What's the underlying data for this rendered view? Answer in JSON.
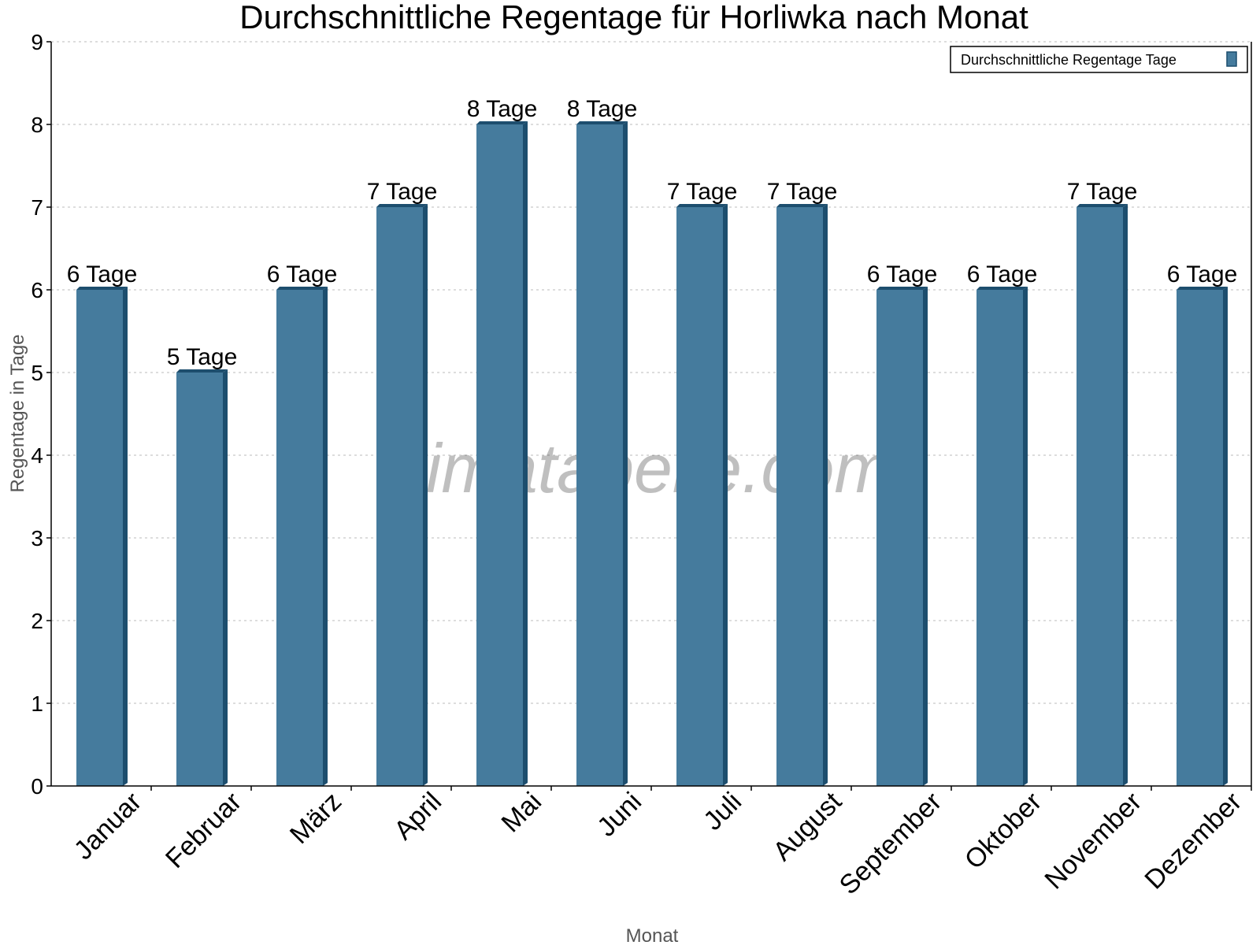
{
  "chart_data": {
    "type": "bar",
    "title": "Durchschnittliche Regentage für Horliwka nach Monat",
    "xlabel": "Monat",
    "ylabel": "Regentage in Tage",
    "categories": [
      "Januar",
      "Februar",
      "März",
      "April",
      "Mai",
      "Juni",
      "Juli",
      "August",
      "September",
      "Oktober",
      "November",
      "Dezember"
    ],
    "series": [
      {
        "name": "Durchschnittliche Regentage Tage",
        "values": [
          6,
          5,
          6,
          7,
          8,
          8,
          7,
          7,
          6,
          6,
          7,
          6
        ]
      }
    ],
    "data_labels": [
      "6 Tage",
      "5 Tage",
      "6 Tage",
      "7 Tage",
      "8 Tage",
      "8 Tage",
      "7 Tage",
      "7 Tage",
      "6 Tage",
      "6 Tage",
      "7 Tage",
      "6 Tage"
    ],
    "ylim": [
      0,
      9
    ],
    "yticks": [
      0,
      1,
      2,
      3,
      4,
      5,
      6,
      7,
      8,
      9
    ],
    "grid": true,
    "legend_position": "top-right",
    "watermark": "klimatabelle.com",
    "colors": {
      "bar": "#457b9d",
      "bar_side": "#1d4e6e"
    }
  }
}
